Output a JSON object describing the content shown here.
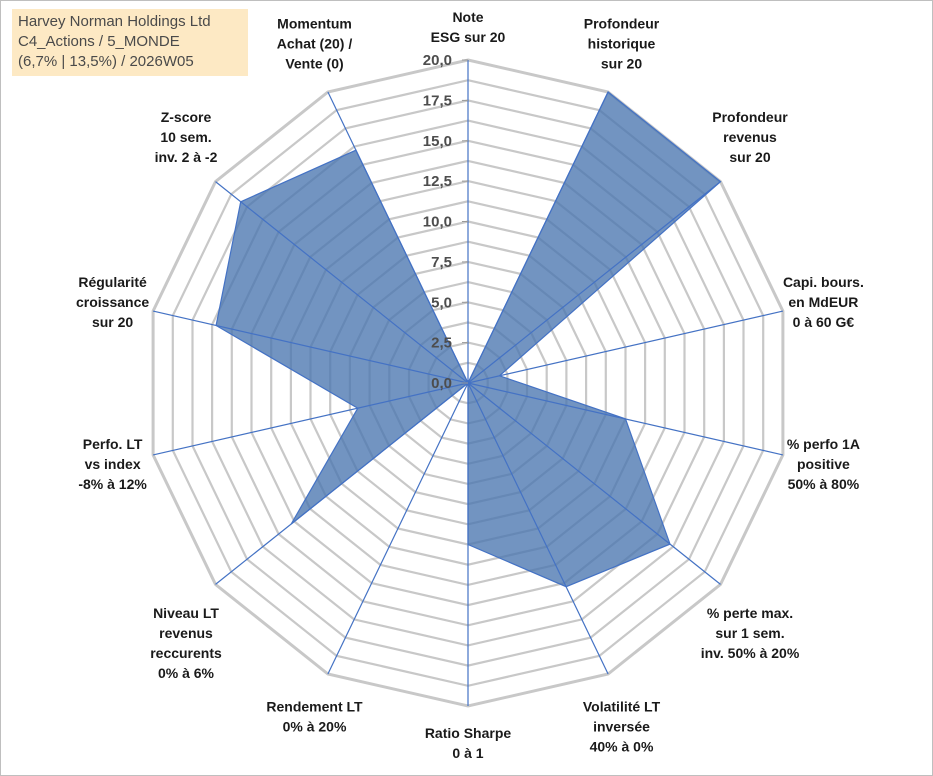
{
  "info_box": {
    "line1": "Harvey Norman Holdings Ltd",
    "line2": "C4_Actions / 5_MONDE",
    "line3": "(6,7% | 13,5%) / 2026W05"
  },
  "colors": {
    "grid": "#c8c8c8",
    "spoke": "#4472c4",
    "fill": "#4a76b0",
    "stroke": "#4472c4"
  },
  "chart_data": {
    "type": "radar",
    "title": "",
    "range": [
      0,
      20
    ],
    "ticks": [
      "0,0",
      "2,5",
      "5,0",
      "7,5",
      "10,0",
      "12,5",
      "15,0",
      "17,5",
      "20,0"
    ],
    "axes": [
      {
        "lines": [
          "Note",
          "ESG sur 20"
        ],
        "value": 0
      },
      {
        "lines": [
          "Profondeur",
          "historique",
          "sur 20"
        ],
        "value": 20
      },
      {
        "lines": [
          "Profondeur",
          "revenus",
          "sur 20"
        ],
        "value": 20
      },
      {
        "lines": [
          "Capi. bours.",
          "en MdEUR",
          "0 à 60 G€"
        ],
        "value": 2.0
      },
      {
        "lines": [
          "% perfo 1A",
          "positive",
          "50% à 80%"
        ],
        "value": 10.0
      },
      {
        "lines": [
          "% perte max.",
          "sur 1 sem.",
          "inv. 50% à 20%"
        ],
        "value": 16.0
      },
      {
        "lines": [
          "Volatilité LT",
          "inversée",
          "40% à 0%"
        ],
        "value": 14.0
      },
      {
        "lines": [
          "Ratio Sharpe",
          "0 à 1"
        ],
        "value": 10.0
      },
      {
        "lines": [
          "Rendement LT",
          "0% à 20%"
        ],
        "value": 0
      },
      {
        "lines": [
          "Niveau LT",
          "revenus",
          "reccurents",
          "0% à 6%"
        ],
        "value": 14.0
      },
      {
        "lines": [
          "Perfo. LT",
          "vs index",
          "-8% à 12%"
        ],
        "value": 7.0
      },
      {
        "lines": [
          "Régularité",
          "croissance",
          "sur 20"
        ],
        "value": 16.0
      },
      {
        "lines": [
          "Z-score",
          "10 sem.",
          "inv. 2 à -2"
        ],
        "value": 18.0
      },
      {
        "lines": [
          "Momentum",
          "Achat (20) /",
          "Vente (0)"
        ],
        "value": 16.0
      }
    ]
  }
}
